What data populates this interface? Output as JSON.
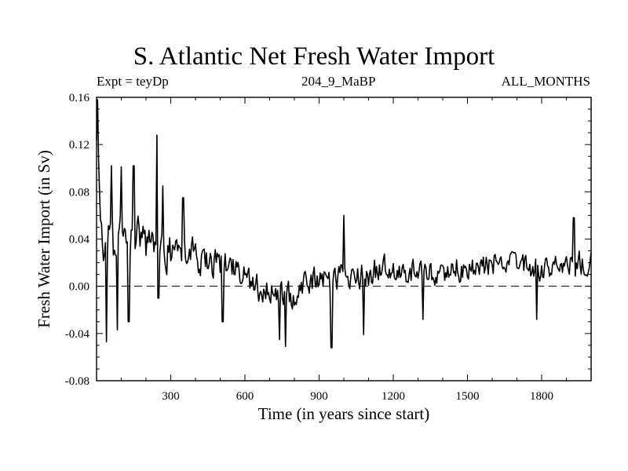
{
  "chart_data": {
    "type": "line",
    "title": "S. Atlantic Net Fresh Water Import",
    "subtitle_left": "Expt = teyDp",
    "subtitle_center": "204_9_MaBP",
    "subtitle_right": "ALL_MONTHS",
    "xlabel": "Time (in years since start)",
    "ylabel": "Fresh Water Import (in Sv)",
    "xlim": [
      0,
      2000
    ],
    "ylim": [
      -0.08,
      0.16
    ],
    "xticks": [
      300,
      600,
      900,
      1200,
      1500,
      1800
    ],
    "xtick_labels": [
      "300",
      "600",
      "900",
      "1200",
      "1500",
      "1800"
    ],
    "yticks": [
      -0.08,
      -0.04,
      0.0,
      0.04,
      0.08,
      0.12,
      0.16
    ],
    "ytick_labels": [
      "-0.08",
      "-0.04",
      "0.00",
      "0.04",
      "0.08",
      "0.12",
      "0.16"
    ],
    "reference_line": {
      "y": 0.0,
      "style": "dashed"
    },
    "anchor_points": {
      "x": [
        0,
        5,
        10,
        20,
        30,
        40,
        50,
        60,
        70,
        80,
        90,
        100,
        110,
        120,
        140,
        160,
        180,
        200,
        220,
        240,
        250,
        260,
        270,
        280,
        300,
        320,
        340,
        360,
        380,
        400,
        450,
        500,
        550,
        600,
        650,
        700,
        750,
        800,
        850,
        900,
        950,
        1000,
        1050,
        1100,
        1150,
        1200,
        1250,
        1300,
        1350,
        1400,
        1450,
        1500,
        1550,
        1600,
        1650,
        1700,
        1750,
        1800,
        1850,
        1900,
        1950,
        2000
      ],
      "y": [
        0.11,
        0.15,
        0.07,
        0.035,
        0.03,
        0.04,
        0.035,
        0.045,
        0.03,
        0.04,
        0.035,
        0.04,
        0.045,
        0.04,
        0.04,
        0.045,
        0.045,
        0.035,
        0.025,
        0.03,
        0.035,
        0.03,
        0.03,
        0.025,
        0.03,
        0.03,
        0.025,
        0.03,
        0.03,
        0.025,
        0.02,
        0.02,
        0.015,
        0.01,
        0.0,
        -0.005,
        -0.01,
        -0.005,
        0.005,
        0.005,
        0.005,
        0.01,
        0.01,
        0.01,
        0.015,
        0.015,
        0.01,
        0.015,
        0.01,
        0.01,
        0.015,
        0.015,
        0.015,
        0.02,
        0.02,
        0.02,
        0.015,
        0.015,
        0.015,
        0.015,
        0.02,
        0.02
      ]
    },
    "noise_amplitude": {
      "x": [
        0,
        200,
        300,
        600,
        900,
        2000
      ],
      "amp": [
        0.032,
        0.026,
        0.02,
        0.017,
        0.016,
        0.014
      ]
    },
    "spikes": {
      "x": [
        3,
        40,
        60,
        85,
        100,
        130,
        150,
        245,
        250,
        268,
        350,
        510,
        740,
        765,
        950,
        1000,
        1080,
        1320,
        1780,
        1930
      ],
      "y": [
        0.158,
        -0.047,
        0.102,
        -0.037,
        0.101,
        -0.03,
        0.102,
        0.128,
        -0.01,
        0.085,
        0.075,
        -0.03,
        -0.045,
        -0.051,
        -0.052,
        0.06,
        -0.041,
        -0.028,
        -0.028,
        0.058
      ]
    },
    "sample_step": 4,
    "random_seed": 204
  }
}
